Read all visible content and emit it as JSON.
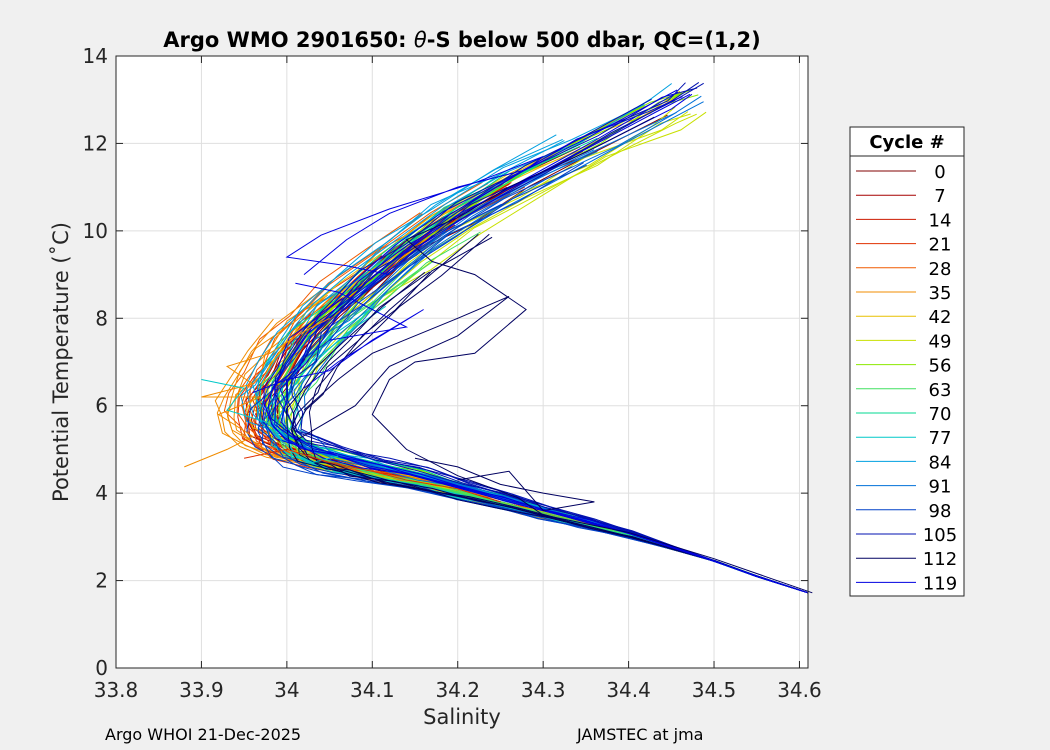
{
  "chart_data": {
    "type": "line",
    "title_prefix": "Argo WMO 2901650: ",
    "title_theta": "θ",
    "title_suffix": "-S below 500 dbar,  QC=(1,2)",
    "xlabel": "Salinity",
    "ylabel": "Potential Temperature (˚C)",
    "xlim": [
      33.8,
      34.61
    ],
    "ylim": [
      0,
      14
    ],
    "xticks": [
      33.8,
      33.9,
      34.0,
      34.1,
      34.2,
      34.3,
      34.4,
      34.5,
      34.6
    ],
    "xtick_labels": [
      "33.8",
      "33.9",
      "34",
      "34.1",
      "34.2",
      "34.3",
      "34.4",
      "34.5",
      "34.6"
    ],
    "yticks": [
      0,
      2,
      4,
      6,
      8,
      10,
      12,
      14
    ],
    "ytick_labels": [
      "0",
      "2",
      "4",
      "6",
      "8",
      "10",
      "12",
      "14"
    ],
    "grid": true,
    "legend": {
      "title": "Cycle #",
      "position": "right",
      "entries": [
        {
          "label": "0",
          "color": "#800000"
        },
        {
          "label": "7",
          "color": "#a50000"
        },
        {
          "label": "14",
          "color": "#cc1a00"
        },
        {
          "label": "21",
          "color": "#e03000"
        },
        {
          "label": "28",
          "color": "#f05a00"
        },
        {
          "label": "35",
          "color": "#f08c00"
        },
        {
          "label": "42",
          "color": "#e8c000"
        },
        {
          "label": "49",
          "color": "#c8e000"
        },
        {
          "label": "56",
          "color": "#8ce800"
        },
        {
          "label": "63",
          "color": "#40e060"
        },
        {
          "label": "70",
          "color": "#00d890"
        },
        {
          "label": "77",
          "color": "#00c8c8"
        },
        {
          "label": "84",
          "color": "#00a0e0"
        },
        {
          "label": "91",
          "color": "#0070d8"
        },
        {
          "label": "98",
          "color": "#0040c8"
        },
        {
          "label": "105",
          "color": "#0010b0"
        },
        {
          "label": "112",
          "color": "#000060"
        },
        {
          "label": "119",
          "color": "#0000e0"
        }
      ]
    },
    "profile_base": [
      [
        34.615,
        1.72
      ],
      [
        34.55,
        2.1
      ],
      [
        34.5,
        2.45
      ],
      [
        34.45,
        2.75
      ],
      [
        34.4,
        3.05
      ],
      [
        34.35,
        3.3
      ],
      [
        34.3,
        3.55
      ],
      [
        34.25,
        3.8
      ],
      [
        34.2,
        4.05
      ],
      [
        34.15,
        4.3
      ],
      [
        34.1,
        4.5
      ],
      [
        34.05,
        4.72
      ],
      [
        34.02,
        4.9
      ],
      [
        34.0,
        5.1
      ],
      [
        33.985,
        5.4
      ],
      [
        33.98,
        5.8
      ],
      [
        33.985,
        6.2
      ],
      [
        34.0,
        6.7
      ],
      [
        34.02,
        7.3
      ],
      [
        34.05,
        7.9
      ],
      [
        34.09,
        8.6
      ],
      [
        34.14,
        9.4
      ],
      [
        34.2,
        10.2
      ],
      [
        34.27,
        11.0
      ],
      [
        34.35,
        11.8
      ],
      [
        34.43,
        12.6
      ],
      [
        34.46,
        12.95
      ]
    ],
    "series": [
      {
        "name": "0",
        "color": "#800000",
        "ds": 0.0,
        "dt": 0.05,
        "tmax": 11.6
      },
      {
        "name": "7",
        "color": "#a50000",
        "ds": -0.015,
        "dt": -0.05,
        "tmax": 9.8
      },
      {
        "name": "14",
        "color": "#cc1a00",
        "ds": -0.008,
        "dt": 0.1,
        "tmax": 10.4
      },
      {
        "name": "21",
        "color": "#e03000",
        "ds": -0.025,
        "dt": -0.1,
        "tmax": 10.2
      },
      {
        "name": "28",
        "color": "#f05a00",
        "ds": -0.035,
        "dt": 0.15,
        "tmax": 10.6
      },
      {
        "name": "35",
        "color": "#f08c00",
        "ds": -0.05,
        "dt": 0.0,
        "tmax": 8.4
      },
      {
        "name": "42",
        "color": "#e8c000",
        "ds": -0.01,
        "dt": 0.2,
        "tmax": 12.3
      },
      {
        "name": "49",
        "color": "#c8e000",
        "ds": 0.012,
        "dt": -0.2,
        "tmax": 13.4
      },
      {
        "name": "56",
        "color": "#8ce800",
        "ds": 0.005,
        "dt": 0.25,
        "tmax": 12.9
      },
      {
        "name": "63",
        "color": "#40e060",
        "ds": 0.018,
        "dt": -0.15,
        "tmax": 9.2
      },
      {
        "name": "70",
        "color": "#00d890",
        "ds": -0.004,
        "dt": 0.3,
        "tmax": 11.0
      },
      {
        "name": "77",
        "color": "#00c8c8",
        "ds": 0.008,
        "dt": -0.25,
        "tmax": 8.2
      },
      {
        "name": "84",
        "color": "#00a0e0",
        "ds": -0.02,
        "dt": 0.35,
        "tmax": 11.9
      },
      {
        "name": "91",
        "color": "#0070d8",
        "ds": 0.022,
        "dt": 0.1,
        "tmax": 12.2
      },
      {
        "name": "98",
        "color": "#0040c8",
        "ds": -0.012,
        "dt": -0.3,
        "tmax": 11.3
      },
      {
        "name": "105",
        "color": "#0010b0",
        "ds": 0.015,
        "dt": 0.4,
        "tmax": 12.8
      },
      {
        "name": "112",
        "color": "#000060",
        "ds": 0.03,
        "dt": -0.35,
        "tmax": 9.6
      },
      {
        "name": "119",
        "color": "#0000e0",
        "ds": 0.002,
        "dt": 0.2,
        "tmax": 13.3
      }
    ],
    "extra_lines": [
      {
        "color": "#000060",
        "points": [
          [
            34.615,
            1.72
          ],
          [
            34.5,
            2.5
          ],
          [
            34.4,
            3.1
          ],
          [
            34.3,
            3.5
          ],
          [
            34.27,
            3.9
          ],
          [
            34.2,
            4.4
          ],
          [
            34.14,
            5.0
          ],
          [
            34.1,
            5.8
          ],
          [
            34.12,
            6.6
          ],
          [
            34.15,
            7.0
          ],
          [
            34.22,
            7.2
          ],
          [
            34.28,
            8.2
          ],
          [
            34.22,
            9.0
          ],
          [
            34.17,
            9.3
          ],
          [
            34.14,
            9.8
          ],
          [
            34.2,
            10.3
          ],
          [
            34.26,
            11.0
          ],
          [
            34.35,
            11.8
          ],
          [
            34.43,
            12.6
          ]
        ]
      },
      {
        "color": "#000060",
        "points": [
          [
            34.01,
            5.2
          ],
          [
            34.08,
            6.0
          ],
          [
            34.12,
            6.9
          ],
          [
            34.2,
            7.6
          ],
          [
            34.26,
            8.5
          ],
          [
            34.2,
            8.0
          ],
          [
            34.15,
            7.6
          ],
          [
            34.1,
            7.2
          ],
          [
            34.06,
            6.6
          ],
          [
            34.02,
            5.9
          ]
        ]
      },
      {
        "color": "#0000e0",
        "points": [
          [
            34.02,
            9.0
          ],
          [
            34.07,
            9.8
          ],
          [
            34.12,
            10.4
          ],
          [
            34.2,
            11.0
          ],
          [
            34.28,
            11.4
          ],
          [
            34.3,
            11.7
          ],
          [
            34.22,
            11.1
          ],
          [
            34.12,
            10.5
          ],
          [
            34.04,
            9.9
          ],
          [
            34.0,
            9.4
          ],
          [
            34.07,
            9.2
          ],
          [
            34.12,
            9.0
          ]
        ]
      },
      {
        "color": "#0000e0",
        "points": [
          [
            34.01,
            8.8
          ],
          [
            34.06,
            8.6
          ],
          [
            34.1,
            8.2
          ],
          [
            34.14,
            7.8
          ],
          [
            34.05,
            7.5
          ]
        ]
      },
      {
        "color": "#f08c00",
        "points": [
          [
            33.88,
            4.6
          ],
          [
            33.93,
            5.0
          ],
          [
            33.96,
            5.3
          ],
          [
            33.92,
            5.8
          ],
          [
            33.97,
            6.2
          ],
          [
            33.9,
            6.2
          ],
          [
            33.96,
            6.5
          ],
          [
            33.93,
            6.9
          ],
          [
            33.98,
            7.2
          ],
          [
            34.02,
            7.7
          ],
          [
            34.05,
            8.0
          ]
        ]
      },
      {
        "color": "#00c8c8",
        "points": [
          [
            33.9,
            6.6
          ],
          [
            33.95,
            6.4
          ],
          [
            33.93,
            5.9
          ],
          [
            33.98,
            5.6
          ],
          [
            34.0,
            5.0
          ],
          [
            34.03,
            4.7
          ],
          [
            34.06,
            4.85
          ]
        ]
      },
      {
        "color": "#e03000",
        "points": [
          [
            33.95,
            4.8
          ],
          [
            34.0,
            5.0
          ],
          [
            34.05,
            4.7
          ],
          [
            34.1,
            4.5
          ],
          [
            34.14,
            4.3
          ],
          [
            34.2,
            4.1
          ],
          [
            34.25,
            3.8
          ]
        ]
      },
      {
        "color": "#000060",
        "points": [
          [
            34.15,
            4.8
          ],
          [
            34.2,
            4.6
          ],
          [
            34.25,
            4.2
          ],
          [
            34.3,
            4.0
          ],
          [
            34.36,
            3.8
          ],
          [
            34.3,
            3.6
          ],
          [
            34.26,
            4.5
          ],
          [
            34.2,
            4.3
          ]
        ]
      },
      {
        "color": "#0000e0",
        "points": [
          [
            33.96,
            6.3
          ],
          [
            34.0,
            6.6
          ],
          [
            34.05,
            6.8
          ],
          [
            34.1,
            7.5
          ],
          [
            34.16,
            8.2
          ],
          [
            34.06,
            7.0
          ],
          [
            34.02,
            6.4
          ]
        ]
      }
    ]
  },
  "footer": {
    "left": "Argo WHOI 21-Dec-2025",
    "right": "JAMSTEC at jma"
  }
}
